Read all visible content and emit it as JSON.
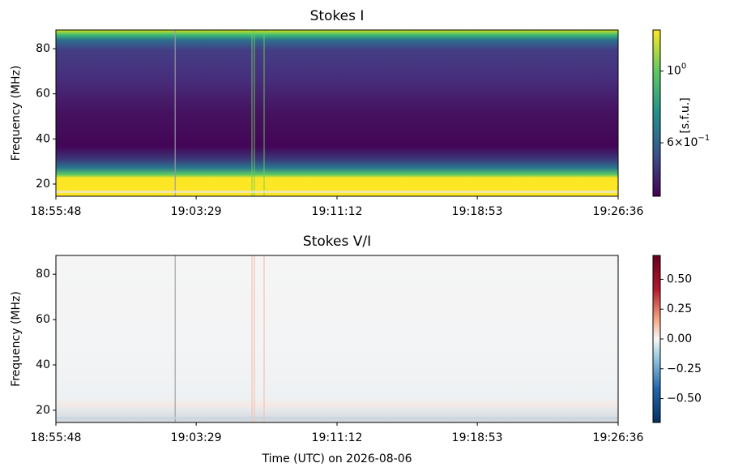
{
  "chart_data": [
    {
      "type": "spectrogram",
      "title": "Stokes I",
      "ylabel": "Frequency (MHz)",
      "xlim": [
        "18:55:48",
        "19:26:36"
      ],
      "xticks": [
        "18:55:48",
        "19:03:29",
        "19:11:12",
        "19:18:53",
        "19:26:36"
      ],
      "ylim": [
        14.6,
        88.3
      ],
      "yticks": [
        20,
        40,
        60,
        80
      ],
      "colormap": "viridis",
      "colorbar": {
        "label": "[s.f.u.]",
        "scale": "log",
        "clim": [
          0.41,
          1.34
        ],
        "ticks": [
          {
            "value": 1,
            "label": "10^0"
          },
          {
            "value": 0.6,
            "label": "6×10^−1"
          }
        ]
      }
    },
    {
      "type": "spectrogram",
      "title": "Stokes V/I",
      "ylabel": "Frequency (MHz)",
      "xlabel": "Time (UTC) on 2026-08-06",
      "xlim": [
        "18:55:48",
        "19:26:36"
      ],
      "xticks": [
        "18:55:48",
        "19:03:29",
        "19:11:12",
        "19:18:53",
        "19:26:36"
      ],
      "ylim": [
        14.6,
        88.3
      ],
      "yticks": [
        20,
        40,
        60,
        80
      ],
      "colormap": "RdBu_r",
      "colorbar": {
        "scale": "linear",
        "clim": [
          -0.7,
          0.7
        ],
        "ticks": [
          {
            "value": 0.5,
            "label": "0.50"
          },
          0.25,
          {
            "value": 0,
            "label": "0.00"
          },
          {
            "value": -0.25,
            "label": "−0.25"
          },
          {
            "value": -0.5,
            "label": "−0.50"
          }
        ]
      }
    }
  ]
}
